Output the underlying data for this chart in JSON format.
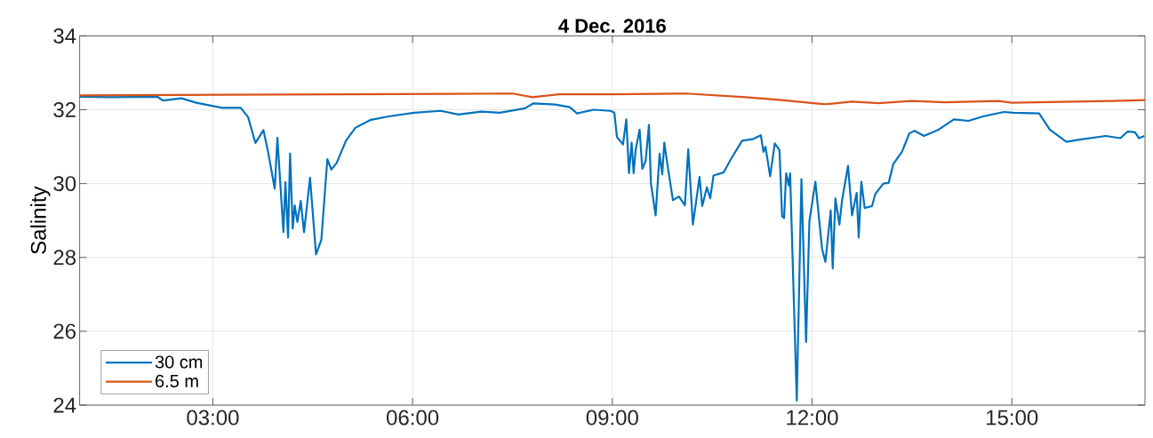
{
  "chart_data": {
    "type": "line",
    "title": "4 Dec. 2016",
    "ylabel": "Salinity",
    "xlim": [
      1,
      17
    ],
    "ylim": [
      24,
      34
    ],
    "xticks": [
      {
        "value": 3,
        "label": "03:00"
      },
      {
        "value": 6,
        "label": "06:00"
      },
      {
        "value": 9,
        "label": "09:00"
      },
      {
        "value": 12,
        "label": "12:00"
      },
      {
        "value": 15,
        "label": "15:00"
      }
    ],
    "yticks": [
      24,
      26,
      28,
      30,
      32,
      34
    ],
    "grid": true,
    "legend": "bottom left",
    "marker": "none",
    "line_style": "solid",
    "series": [
      {
        "name": "30 cm",
        "color": "#0072bd",
        "x": [
          1.0,
          1.47,
          2.17,
          2.25,
          2.53,
          2.75,
          3.14,
          3.42,
          3.53,
          3.64,
          3.76,
          3.83,
          3.93,
          3.97,
          4.06,
          4.09,
          4.13,
          4.16,
          4.2,
          4.23,
          4.27,
          4.32,
          4.37,
          4.46,
          4.55,
          4.63,
          4.72,
          4.78,
          4.86,
          5.0,
          5.14,
          5.36,
          5.64,
          6.03,
          6.42,
          6.69,
          7.03,
          7.31,
          7.69,
          7.81,
          8.14,
          8.36,
          8.47,
          8.72,
          8.97,
          9.03,
          9.07,
          9.16,
          9.21,
          9.25,
          9.29,
          9.32,
          9.35,
          9.41,
          9.45,
          9.5,
          9.55,
          9.58,
          9.65,
          9.71,
          9.75,
          9.78,
          9.82,
          9.91,
          10.0,
          10.09,
          10.14,
          10.21,
          10.31,
          10.35,
          10.42,
          10.47,
          10.52,
          10.67,
          10.78,
          10.95,
          11.12,
          11.23,
          11.27,
          11.3,
          11.37,
          11.44,
          11.51,
          11.55,
          11.58,
          11.61,
          11.65,
          11.67,
          11.77,
          11.84,
          11.91,
          11.96,
          12.05,
          12.15,
          12.2,
          12.28,
          12.31,
          12.35,
          12.41,
          12.45,
          12.54,
          12.6,
          12.67,
          12.7,
          12.74,
          12.79,
          12.9,
          12.95,
          13.07,
          13.15,
          13.22,
          13.35,
          13.46,
          13.54,
          13.68,
          13.9,
          14.13,
          14.35,
          14.57,
          14.88,
          15.02,
          15.41,
          15.57,
          15.82,
          16.02,
          16.41,
          16.63,
          16.74,
          16.85,
          16.91,
          16.99
        ],
        "values": [
          32.35,
          32.34,
          32.35,
          32.25,
          32.31,
          32.19,
          32.05,
          32.05,
          31.8,
          31.1,
          31.45,
          30.86,
          29.86,
          31.24,
          28.69,
          30.04,
          28.54,
          30.81,
          28.78,
          29.41,
          28.96,
          29.53,
          28.68,
          30.16,
          28.08,
          28.48,
          30.66,
          30.38,
          30.56,
          31.16,
          31.51,
          31.72,
          31.82,
          31.92,
          31.97,
          31.87,
          31.95,
          31.92,
          32.04,
          32.17,
          32.14,
          32.07,
          31.9,
          32.0,
          31.97,
          31.92,
          31.26,
          31.06,
          31.74,
          30.28,
          31.11,
          30.28,
          30.91,
          31.46,
          30.4,
          30.61,
          31.59,
          30.0,
          29.14,
          30.81,
          30.25,
          31.11,
          30.61,
          29.55,
          29.65,
          29.41,
          30.93,
          28.89,
          30.18,
          29.39,
          29.9,
          29.6,
          30.22,
          30.3,
          30.66,
          31.16,
          31.21,
          31.31,
          30.86,
          31.0,
          30.2,
          31.09,
          30.91,
          29.11,
          29.07,
          30.28,
          29.95,
          30.28,
          24.12,
          30.12,
          25.71,
          28.99,
          30.05,
          28.23,
          27.88,
          29.27,
          27.7,
          29.6,
          28.89,
          29.55,
          30.48,
          29.14,
          29.75,
          28.54,
          30.05,
          29.34,
          29.39,
          29.72,
          30.0,
          30.02,
          30.53,
          30.86,
          31.36,
          31.43,
          31.29,
          31.46,
          31.74,
          31.7,
          31.82,
          31.94,
          31.92,
          31.9,
          31.46,
          31.13,
          31.19,
          31.29,
          31.23,
          31.41,
          31.39,
          31.23,
          31.29
        ]
      },
      {
        "name": "6.5 m",
        "color": "#d95319",
        "x": [
          1.0,
          5.0,
          7.5,
          7.8,
          8.2,
          9.0,
          10.1,
          11.0,
          11.5,
          12.2,
          12.6,
          13.0,
          13.5,
          14.0,
          14.8,
          15.0,
          16.5,
          17.0
        ],
        "values": [
          32.39,
          32.42,
          32.44,
          32.34,
          32.42,
          32.42,
          32.44,
          32.34,
          32.27,
          32.15,
          32.22,
          32.18,
          32.24,
          32.2,
          32.24,
          32.19,
          32.24,
          32.26
        ]
      }
    ]
  }
}
